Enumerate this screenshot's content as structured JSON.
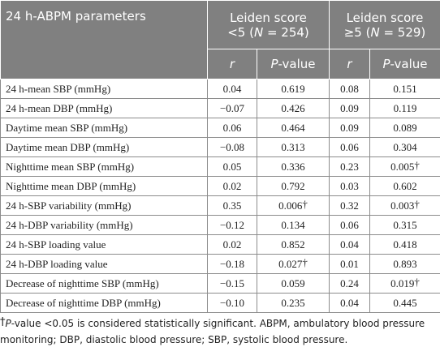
{
  "table": {
    "header": {
      "parameter": "24 h-ABPM parameters",
      "groups": [
        {
          "line1": "Leiden score",
          "prefix": "<5 (",
          "italic": "N",
          "suffix": " = 254)"
        },
        {
          "line1": "Leiden score",
          "prefix": "≥5 (",
          "italic": "N",
          "suffix": " = 529)"
        }
      ],
      "sub": [
        {
          "italic": "r",
          "text": ""
        },
        {
          "italic": "P",
          "text": "-value"
        },
        {
          "italic": "r",
          "text": ""
        },
        {
          "italic": "P",
          "text": "-value"
        }
      ]
    },
    "rows": [
      [
        {
          "text": "24 h-mean SBP (mmHg)"
        },
        {
          "text": "0.04"
        },
        {
          "text": "0.619"
        },
        {
          "text": "0.08"
        },
        {
          "text": "0.151"
        }
      ],
      [
        {
          "text": "24 h-mean DBP (mmHg)"
        },
        {
          "text": "−0.07"
        },
        {
          "text": "0.426"
        },
        {
          "text": "0.09"
        },
        {
          "text": "0.119"
        }
      ],
      [
        {
          "text": "Daytime mean SBP (mmHg)"
        },
        {
          "text": "0.06"
        },
        {
          "text": "0.464"
        },
        {
          "text": "0.09"
        },
        {
          "text": "0.089"
        }
      ],
      [
        {
          "text": "Daytime mean DBP (mmHg)"
        },
        {
          "text": "−0.08"
        },
        {
          "text": "0.313"
        },
        {
          "text": "0.06"
        },
        {
          "text": "0.304"
        }
      ],
      [
        {
          "text": "Nighttime mean SBP (mmHg)"
        },
        {
          "text": "0.05"
        },
        {
          "text": "0.336"
        },
        {
          "text": "0.23"
        },
        {
          "text": "0.005",
          "mark": "†"
        }
      ],
      [
        {
          "text": "Nighttime mean DBP (mmHg)"
        },
        {
          "text": "0.02"
        },
        {
          "text": "0.792"
        },
        {
          "text": "0.03"
        },
        {
          "text": "0.602"
        }
      ],
      [
        {
          "text": "24 h-SBP variability (mmHg)"
        },
        {
          "text": "0.35"
        },
        {
          "text": "0.006",
          "mark": "†"
        },
        {
          "text": "0.32"
        },
        {
          "text": "0.003",
          "mark": "†"
        }
      ],
      [
        {
          "text": "24 h-DBP variability (mmHg)"
        },
        {
          "text": "−0.12"
        },
        {
          "text": "0.134"
        },
        {
          "text": "0.06"
        },
        {
          "text": "0.315"
        }
      ],
      [
        {
          "text": "24 h-SBP loading value"
        },
        {
          "text": "0.02"
        },
        {
          "text": "0.852"
        },
        {
          "text": "0.04"
        },
        {
          "text": "0.418"
        }
      ],
      [
        {
          "text": "24 h-DBP loading value"
        },
        {
          "text": "−0.18"
        },
        {
          "text": "0.027",
          "mark": "†"
        },
        {
          "text": "0.01"
        },
        {
          "text": "0.893"
        }
      ],
      [
        {
          "text": "Decrease of nighttime SBP (mmHg)"
        },
        {
          "text": "−0.15"
        },
        {
          "text": "0.059"
        },
        {
          "text": "0.24"
        },
        {
          "text": "0.019",
          "mark": "†"
        }
      ],
      [
        {
          "text": "Decrease of nighttime DBP (mmHg)"
        },
        {
          "text": "−0.10"
        },
        {
          "text": "0.235"
        },
        {
          "text": "0.04"
        },
        {
          "text": "0.445"
        }
      ]
    ]
  },
  "footnote": {
    "mark": "†",
    "italic": "P",
    "text": "-value <0.05 is considered statistically significant. ABPM, ambulatory blood pressure monitoring; DBP, diastolic blood pressure; SBP, systolic blood pressure."
  }
}
